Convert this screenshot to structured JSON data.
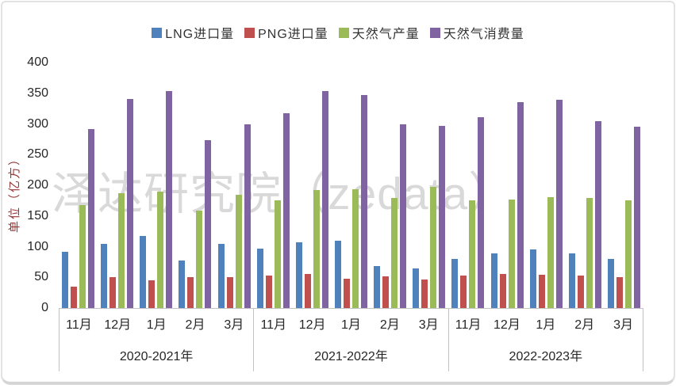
{
  "chart_data": {
    "type": "bar",
    "title": "",
    "ylabel": "单位（亿方）",
    "xlabel": "",
    "ylim": [
      0,
      400
    ],
    "yticks": [
      400,
      350,
      300,
      250,
      200,
      150,
      100,
      50,
      0
    ],
    "grid": false,
    "legend_position": "top",
    "watermark": "泽达研究院（zedata）",
    "group_years": [
      "2020-2021年",
      "2021-2022年",
      "2022-2023年"
    ],
    "categories_months": [
      "11月",
      "12月",
      "1月",
      "2月",
      "3月"
    ],
    "series": [
      {
        "name": "LNG进口量",
        "color": "#4f81bd",
        "values": [
          [
            92,
            105,
            118,
            78,
            105
          ],
          [
            97,
            107,
            110,
            68,
            65
          ],
          [
            80,
            89,
            95,
            89,
            80
          ]
        ]
      },
      {
        "name": "PNG进口量",
        "color": "#c0504d",
        "values": [
          [
            35,
            50,
            45,
            50,
            50
          ],
          [
            53,
            55,
            48,
            52,
            47
          ],
          [
            53,
            55,
            54,
            53,
            50
          ]
        ]
      },
      {
        "name": "天然气产量",
        "color": "#9bbb59",
        "values": [
          [
            168,
            187,
            190,
            159,
            184
          ],
          [
            176,
            192,
            193,
            180,
            197
          ],
          [
            175,
            177,
            181,
            179,
            175
          ]
        ]
      },
      {
        "name": "天然气消费量",
        "color": "#8064a2",
        "values": [
          [
            291,
            341,
            354,
            273,
            300
          ],
          [
            318,
            354,
            347,
            300,
            297
          ],
          [
            311,
            335,
            340,
            305,
            295
          ]
        ]
      }
    ],
    "axis_color": "#c3c3c3",
    "text_color": "#262626",
    "ylabel_color": "#943634",
    "watermark_color": "#d9d9d9"
  }
}
